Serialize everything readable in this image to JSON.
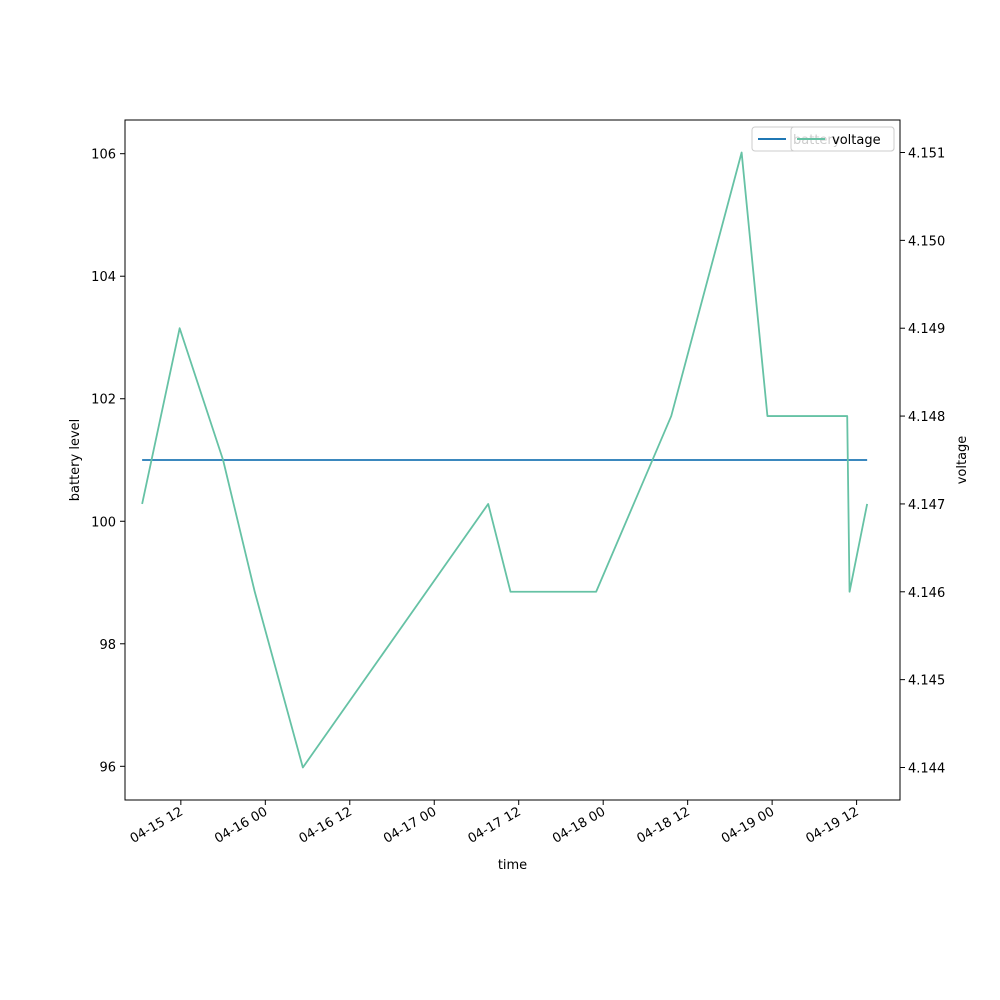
{
  "chart_data": {
    "type": "line",
    "title": "",
    "xlabel": "time",
    "ylabel_left": "battery level",
    "ylabel_right": "voltage",
    "xlim": [
      "2019-04-15 04:04",
      "2019-04-19 18:10"
    ],
    "ylim_left": [
      95.45,
      106.55
    ],
    "ylim_right": [
      4.14363,
      4.15137
    ],
    "x_ticks": [
      "04-15 12",
      "04-16 00",
      "04-16 12",
      "04-17 00",
      "04-17 12",
      "04-18 00",
      "04-18 12",
      "04-19 00",
      "04-19 12"
    ],
    "x_tick_dates": [
      "2019-04-15 12:00",
      "2019-04-16 00:00",
      "2019-04-16 12:00",
      "2019-04-17 00:00",
      "2019-04-17 12:00",
      "2019-04-18 00:00",
      "2019-04-18 12:00",
      "2019-04-19 00:00",
      "2019-04-19 12:00"
    ],
    "y_ticks_left": [
      96,
      98,
      100,
      102,
      104,
      106
    ],
    "y_ticks_right": [
      4.144,
      4.145,
      4.146,
      4.147,
      4.148,
      4.149,
      4.15,
      4.151
    ],
    "legend_placement": "upper-right",
    "grid": false,
    "series": [
      {
        "name": "battery",
        "axis": "left",
        "color": "#1f77b4",
        "x": [
          "2019-04-15 06:30",
          "2019-04-19 13:30"
        ],
        "values": [
          101,
          101
        ]
      },
      {
        "name": "voltage",
        "axis": "right",
        "color": "#66c2a5",
        "x": [
          "2019-04-15 06:30",
          "2019-04-15 11:50",
          "2019-04-15 18:00",
          "2019-04-15 22:30",
          "2019-04-16 05:20",
          "2019-04-17 07:40",
          "2019-04-17 10:50",
          "2019-04-17 23:00",
          "2019-04-18 09:40",
          "2019-04-18 19:40",
          "2019-04-18 23:20",
          "2019-04-19 10:40",
          "2019-04-19 11:00",
          "2019-04-19 13:30"
        ],
        "values": [
          4.147,
          4.149,
          4.1475,
          4.146,
          4.144,
          4.147,
          4.146,
          4.146,
          4.148,
          4.151,
          4.148,
          4.148,
          4.146,
          4.147
        ]
      }
    ]
  }
}
